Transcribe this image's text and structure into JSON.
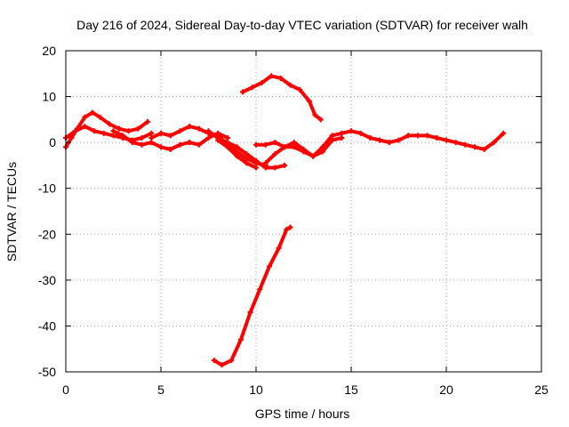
{
  "chart_data": {
    "type": "scatter",
    "title": "Day 216 of 2024, Sidereal Day-to-day VTEC variation (SDTVAR) for receiver walh",
    "xlabel": "GPS time / hours",
    "ylabel": "SDTVAR / TECUs",
    "xlim": [
      0,
      25
    ],
    "ylim": [
      -50,
      20
    ],
    "xticks": [
      0,
      5,
      10,
      15,
      20,
      25
    ],
    "yticks": [
      -50,
      -40,
      -30,
      -20,
      -10,
      0,
      10,
      20
    ],
    "grid": true,
    "colors": {
      "series": "#ff0000",
      "grid": "#a0a0a0",
      "axis": "#000000"
    },
    "series": [
      {
        "name": "track-a",
        "points": [
          [
            0,
            -1
          ],
          [
            0.3,
            1
          ],
          [
            0.6,
            3
          ],
          [
            1.0,
            5.5
          ],
          [
            1.4,
            6.5
          ],
          [
            1.8,
            5.5
          ],
          [
            2.3,
            4
          ],
          [
            2.8,
            3
          ],
          [
            3.3,
            2.5
          ],
          [
            3.8,
            3
          ],
          [
            4.3,
            4.5
          ]
        ]
      },
      {
        "name": "track-b",
        "points": [
          [
            0,
            1
          ],
          [
            0.5,
            2.5
          ],
          [
            1.0,
            3.5
          ],
          [
            1.5,
            2.5
          ],
          [
            2.0,
            2
          ],
          [
            2.5,
            1.5
          ],
          [
            3.0,
            1
          ],
          [
            3.5,
            0.5
          ],
          [
            4.0,
            1
          ],
          [
            4.5,
            2
          ]
        ]
      },
      {
        "name": "track-c",
        "points": [
          [
            2.5,
            2.5
          ],
          [
            3.0,
            1.5
          ],
          [
            3.5,
            0
          ],
          [
            4.0,
            -0.5
          ],
          [
            4.5,
            0
          ],
          [
            5.0,
            -1
          ],
          [
            5.5,
            -1.5
          ],
          [
            6.0,
            -0.5
          ],
          [
            6.5,
            0
          ],
          [
            7.0,
            -0.5
          ],
          [
            7.5,
            1
          ],
          [
            8.0,
            2
          ],
          [
            8.5,
            1
          ]
        ]
      },
      {
        "name": "track-d",
        "points": [
          [
            4.5,
            1
          ],
          [
            5.0,
            2
          ],
          [
            5.5,
            1.5
          ],
          [
            6.0,
            2.5
          ],
          [
            6.5,
            3.5
          ],
          [
            7.0,
            3
          ],
          [
            7.5,
            2
          ],
          [
            8.0,
            1.5
          ],
          [
            8.5,
            -0.5
          ],
          [
            9.0,
            -2
          ],
          [
            9.5,
            -3.5
          ],
          [
            10.0,
            -4.5
          ],
          [
            10.5,
            -5
          ]
        ]
      },
      {
        "name": "track-e",
        "points": [
          [
            7.5,
            2.5
          ],
          [
            8.0,
            1
          ],
          [
            8.5,
            0
          ],
          [
            9.0,
            -1
          ],
          [
            9.5,
            -2.5
          ],
          [
            10.0,
            -4
          ],
          [
            10.5,
            -5.5
          ],
          [
            11.0,
            -5.5
          ],
          [
            11.5,
            -5
          ]
        ]
      },
      {
        "name": "track-f",
        "points": [
          [
            8.0,
            0.5
          ],
          [
            8.5,
            -1
          ],
          [
            9.0,
            -3
          ],
          [
            9.5,
            -4.5
          ],
          [
            10.0,
            -5.5
          ]
        ]
      },
      {
        "name": "track-g",
        "points": [
          [
            10.5,
            -4.5
          ],
          [
            11.0,
            -2.5
          ],
          [
            11.5,
            -1
          ],
          [
            12.0,
            0
          ],
          [
            12.5,
            -1.5
          ],
          [
            13.0,
            -3
          ],
          [
            13.5,
            -1
          ],
          [
            14.0,
            1.5
          ],
          [
            14.5,
            2
          ],
          [
            15.0,
            2.5
          ],
          [
            15.5,
            2
          ],
          [
            16.0,
            1
          ],
          [
            16.5,
            0.5
          ],
          [
            17.0,
            0
          ],
          [
            17.5,
            0.5
          ],
          [
            18.0,
            1.5
          ],
          [
            18.5,
            1.5
          ],
          [
            19.0,
            1.5
          ],
          [
            19.5,
            1
          ],
          [
            20.0,
            0.5
          ],
          [
            20.5,
            0
          ],
          [
            21.0,
            -0.5
          ],
          [
            21.5,
            -1
          ],
          [
            22.0,
            -1.5
          ],
          [
            22.5,
            0
          ],
          [
            23.0,
            2
          ]
        ]
      },
      {
        "name": "track-h",
        "points": [
          [
            10.0,
            -0.5
          ],
          [
            10.5,
            -0.5
          ],
          [
            11.0,
            0
          ],
          [
            11.5,
            -1
          ],
          [
            12.0,
            -1
          ],
          [
            12.5,
            -2
          ],
          [
            13.0,
            -3
          ],
          [
            13.5,
            -2
          ],
          [
            14.0,
            0.5
          ],
          [
            14.5,
            1
          ]
        ]
      },
      {
        "name": "track-i",
        "points": [
          [
            9.3,
            11
          ],
          [
            9.8,
            12
          ],
          [
            10.3,
            13
          ],
          [
            10.8,
            14.5
          ],
          [
            11.3,
            14
          ],
          [
            11.8,
            12.5
          ],
          [
            12.3,
            11.5
          ],
          [
            12.8,
            9
          ],
          [
            13.1,
            6
          ],
          [
            13.4,
            5
          ]
        ]
      },
      {
        "name": "track-j",
        "points": [
          [
            7.8,
            -47.5
          ],
          [
            8.2,
            -48.5
          ],
          [
            8.7,
            -47.5
          ],
          [
            9.2,
            -43
          ],
          [
            9.7,
            -37
          ],
          [
            10.2,
            -32
          ],
          [
            10.7,
            -27
          ],
          [
            11.2,
            -23
          ],
          [
            11.6,
            -19
          ],
          [
            11.8,
            -18.5
          ]
        ]
      }
    ]
  }
}
